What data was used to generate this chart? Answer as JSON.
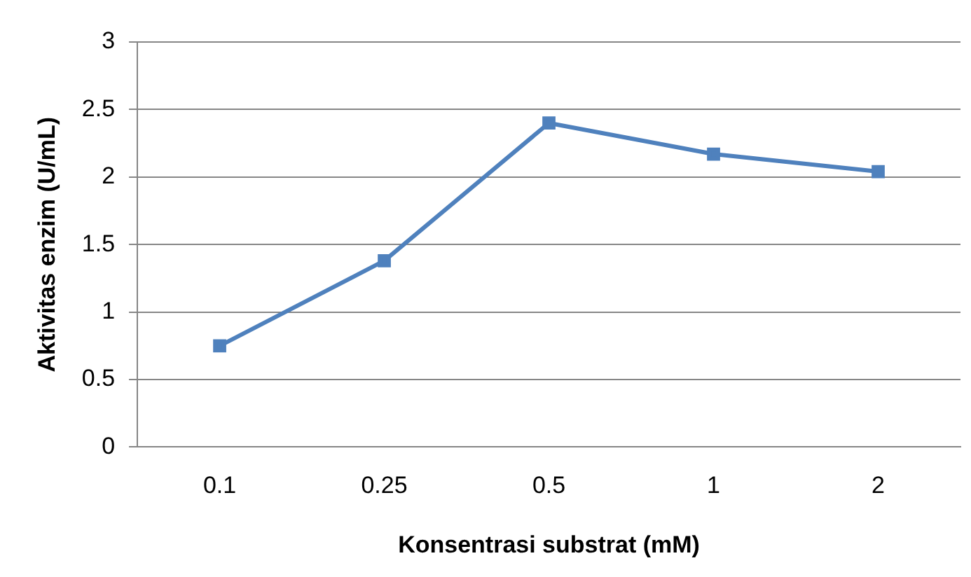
{
  "chart_data": {
    "type": "line",
    "xlabel": "Konsentrasi substrat (mM)",
    "ylabel": "Aktivitas enzim (U/mL)",
    "categories": [
      "0.1",
      "0.25",
      "0.5",
      "1",
      "2"
    ],
    "series": [
      {
        "color": "#4f81bd",
        "values": [
          0.75,
          1.38,
          2.4,
          2.17,
          2.04
        ]
      }
    ],
    "ylim": [
      0,
      3
    ],
    "yticks": [
      0,
      0.5,
      1,
      1.5,
      2,
      2.5,
      3
    ],
    "grid": "y",
    "legend": false,
    "marker": "square",
    "line_style": "solid"
  }
}
